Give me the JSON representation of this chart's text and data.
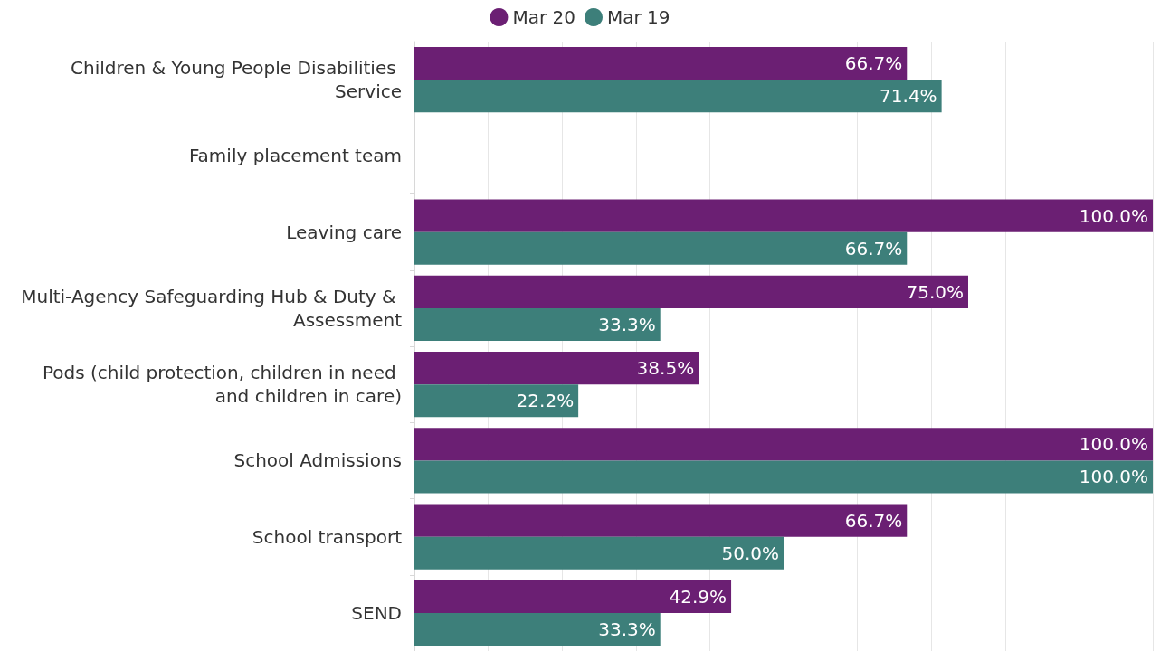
{
  "chart_data": {
    "type": "bar",
    "orientation": "horizontal",
    "categories": [
      "Children & Young People Disabilities Service",
      "Family placement team",
      "Leaving care",
      "Multi-Agency Safeguarding Hub & Duty & Assessment",
      "Pods (child protection, children in need and children in care)",
      "School Admissions",
      "School transport",
      "SEND"
    ],
    "series": [
      {
        "name": "Mar 20",
        "color": "#6b1f73",
        "values": [
          66.7,
          null,
          100.0,
          75.0,
          38.5,
          100.0,
          66.7,
          42.9
        ],
        "value_labels": [
          "66.7%",
          null,
          "100.0%",
          "75.0%",
          "38.5%",
          "100.0%",
          "66.7%",
          "42.9%"
        ]
      },
      {
        "name": "Mar 19",
        "color": "#3d7f7a",
        "values": [
          71.4,
          null,
          66.7,
          33.3,
          22.2,
          100.0,
          50.0,
          33.3
        ],
        "value_labels": [
          "71.4%",
          null,
          "66.7%",
          "33.3%",
          "22.2%",
          "100.0%",
          "50.0%",
          "33.3%"
        ]
      }
    ],
    "xlim": [
      0,
      100
    ],
    "xticks": [
      {
        "value": 0,
        "label": null
      },
      {
        "value": 10,
        "label": null
      },
      {
        "value": 20,
        "label": null
      },
      {
        "value": 30,
        "label": null
      },
      {
        "value": 40,
        "label": null
      },
      {
        "value": 50,
        "label": null
      },
      {
        "value": 60,
        "label": null
      },
      {
        "value": 70,
        "label": null
      },
      {
        "value": 80,
        "label": null
      },
      {
        "value": 90,
        "label": null
      },
      {
        "value": 100,
        "label": null
      }
    ],
    "grid": "x",
    "legend": "top",
    "tick_labels": "y"
  }
}
